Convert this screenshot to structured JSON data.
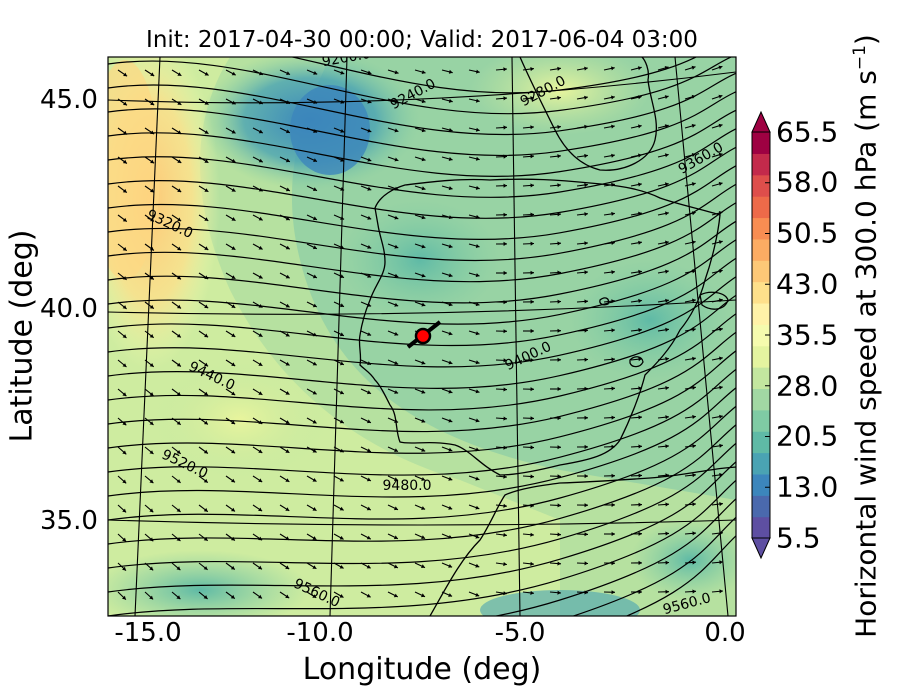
{
  "title": "Init: 2017-04-30 00:00; Valid: 2017-06-04 03:00",
  "xlabel": "Longitude (deg)",
  "ylabel": "Latitude (deg)",
  "colorbar": {
    "label_main": "Horizontal wind speed at 300.0 hPa (m s",
    "label_sup": "−1",
    "label_end": ")",
    "ticks": [
      "5.5",
      "13.0",
      "20.5",
      "28.0",
      "35.5",
      "43.0",
      "50.5",
      "58.0",
      "65.5"
    ],
    "min": 5.5,
    "max": 65.5,
    "colors": [
      "#5e4fa2",
      "#4a69ad",
      "#3c86bc",
      "#4aa3b3",
      "#5fbaa6",
      "#7fcba4",
      "#a2d8a3",
      "#c3e69f",
      "#e4f4a0",
      "#f5fbae",
      "#fff2a8",
      "#fee08b",
      "#fdc877",
      "#fcac63",
      "#f88d52",
      "#ed6a49",
      "#de4e4b",
      "#c32a4b",
      "#9e0142"
    ]
  },
  "x_ticks": [
    "-15.0",
    "-10.0",
    "-5.0",
    "0.0"
  ],
  "y_ticks": [
    "45.0",
    "40.0",
    "35.0"
  ],
  "contour_labels": [
    "9200.0",
    "9240.0",
    "9280.0",
    "9320.0",
    "9360.0",
    "9400.0",
    "9440.0",
    "9480.0",
    "9520.0",
    "9560.0",
    "9560.0"
  ],
  "marker": {
    "color": "#ff0000"
  }
}
